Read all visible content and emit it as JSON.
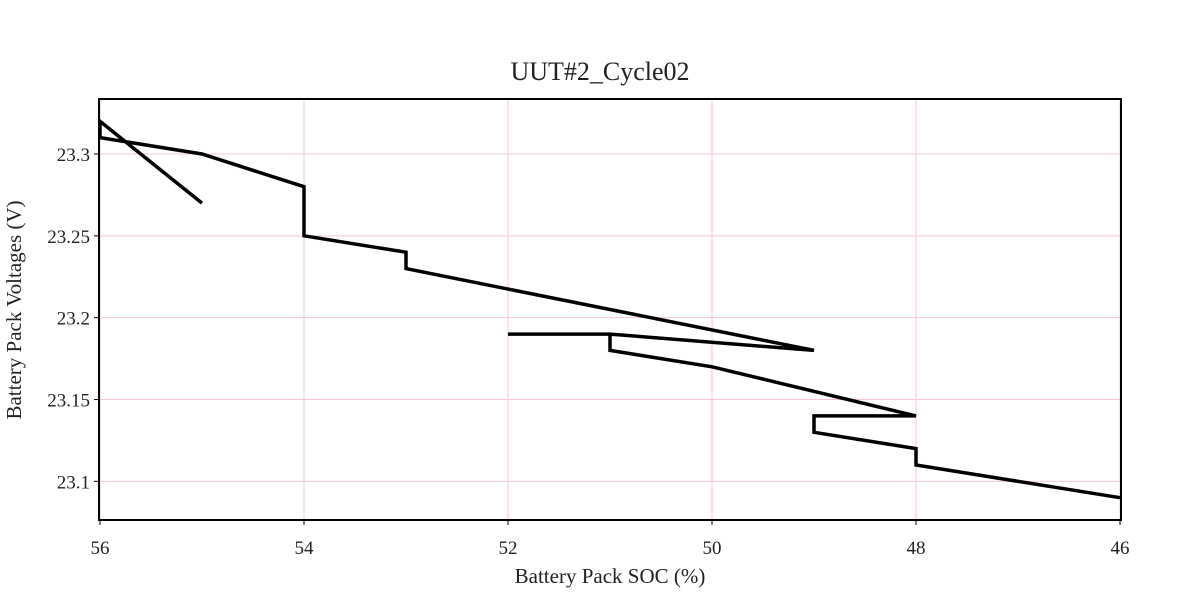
{
  "chart_data": {
    "type": "line",
    "title": "UUT#2_Cycle02",
    "xlabel": "Battery Pack SOC (%)",
    "ylabel": "Battery Pack Voltages (V)",
    "xlim": [
      56,
      46
    ],
    "ylim": [
      23.077,
      23.333
    ],
    "x_reversed": true,
    "grid": true,
    "legend": "none",
    "x_ticks": [
      56,
      54,
      52,
      50,
      48,
      46
    ],
    "y_ticks": [
      23.1,
      23.15,
      23.2,
      23.25,
      23.3
    ],
    "x_tick_labels": [
      "56",
      "54",
      "52",
      "50",
      "48",
      "46"
    ],
    "y_tick_labels": [
      "23.1",
      "23.15",
      "23.2",
      "23.25",
      "23.3"
    ],
    "colors": {
      "line": "#000000",
      "grid": "#f4c7cf",
      "frame": "#000000"
    },
    "series": [
      {
        "x": [
          55,
          56,
          56,
          55,
          54,
          54,
          53,
          53,
          49,
          51,
          52,
          51,
          51,
          50,
          48,
          49,
          49,
          48,
          48,
          46
        ],
        "y": [
          23.27,
          23.32,
          23.31,
          23.3,
          23.28,
          23.25,
          23.24,
          23.23,
          23.18,
          23.19,
          23.19,
          23.19,
          23.18,
          23.17,
          23.14,
          23.14,
          23.13,
          23.12,
          23.11,
          23.09
        ]
      }
    ]
  }
}
